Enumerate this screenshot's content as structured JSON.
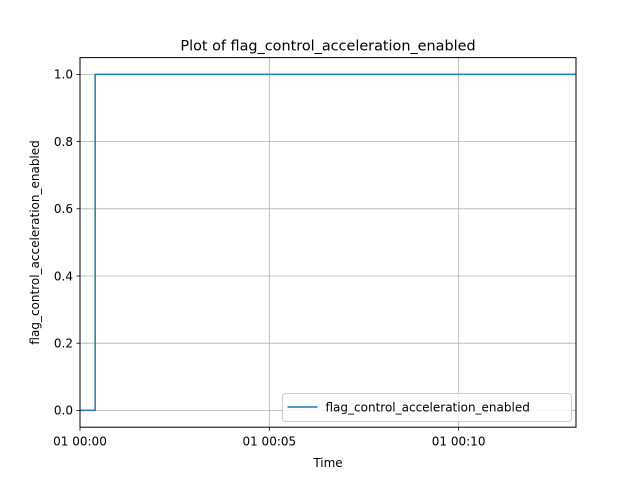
{
  "chart_data": {
    "type": "line",
    "title": "Plot of flag_control_acceleration_enabled",
    "xlabel": "Time",
    "ylabel": "flag_control_acceleration_enabled",
    "x_unit": "minutes",
    "x_ticks": [
      {
        "value": 0,
        "label": "01 00:00"
      },
      {
        "value": 5,
        "label": "01 00:05"
      },
      {
        "value": 10,
        "label": "01 00:10"
      }
    ],
    "y_ticks": [
      {
        "value": 0.0,
        "label": "0.0"
      },
      {
        "value": 0.2,
        "label": "0.2"
      },
      {
        "value": 0.4,
        "label": "0.4"
      },
      {
        "value": 0.6,
        "label": "0.6"
      },
      {
        "value": 0.8,
        "label": "0.8"
      },
      {
        "value": 1.0,
        "label": "1.0"
      }
    ],
    "xlim": [
      0,
      13.1
    ],
    "ylim": [
      -0.05,
      1.05
    ],
    "grid": true,
    "legend_position": "lower-right",
    "series": [
      {
        "name": "flag_control_acceleration_enabled",
        "color": "#1f77b4",
        "drawstyle": "steps-post",
        "x": [
          0,
          0.4,
          0.4,
          13.1
        ],
        "y": [
          0,
          0,
          1,
          1
        ]
      }
    ]
  }
}
